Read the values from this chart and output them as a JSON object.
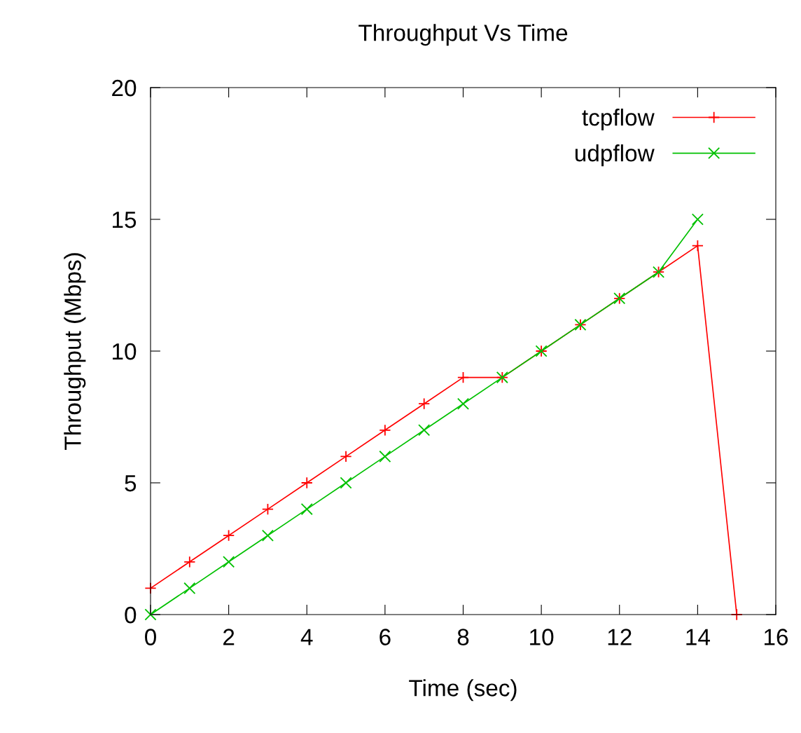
{
  "chart_data": {
    "type": "line",
    "title": "Throughput Vs Time",
    "xlabel": "Time (sec)",
    "ylabel": "Throughput (Mbps)",
    "xlim": [
      0,
      16
    ],
    "xticks": [
      0,
      2,
      4,
      6,
      8,
      10,
      12,
      14,
      16
    ],
    "ylim": [
      0,
      20
    ],
    "yticks": [
      0,
      5,
      10,
      15,
      20
    ],
    "grid": false,
    "legend": "top right",
    "line_style": "solid",
    "series": [
      {
        "name": "tcpflow",
        "color": "#ff0000",
        "marker": "plus",
        "x": [
          0,
          1,
          2,
          3,
          4,
          5,
          6,
          7,
          8,
          9,
          10,
          11,
          12,
          13,
          14,
          15
        ],
        "values": [
          1,
          2,
          3,
          4,
          5,
          6,
          7,
          8,
          9,
          9,
          10,
          11,
          12,
          13,
          14,
          0
        ]
      },
      {
        "name": "udpflow",
        "color": "#00c000",
        "marker": "cross",
        "x": [
          0,
          1,
          2,
          3,
          4,
          5,
          6,
          7,
          8,
          9,
          10,
          11,
          12,
          13,
          14
        ],
        "values": [
          0,
          1,
          2,
          3,
          4,
          5,
          6,
          7,
          8,
          9,
          10,
          11,
          12,
          13,
          15
        ]
      }
    ]
  }
}
